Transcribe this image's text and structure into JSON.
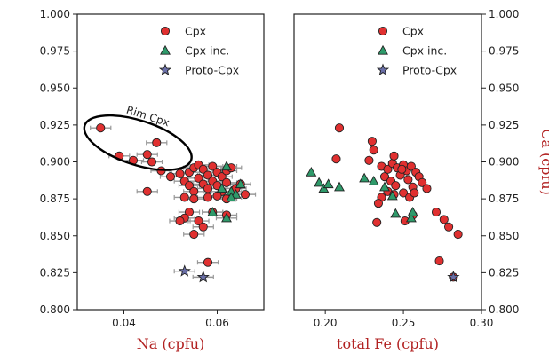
{
  "chart_data": [
    {
      "type": "scatter",
      "xlabel": "Na (cpfu)",
      "ylabel": "",
      "xlim": [
        0.03,
        0.07
      ],
      "ylim": [
        0.8,
        1.0
      ],
      "xticks": [
        "0.04",
        "0.06"
      ],
      "yticks": [
        "0.800",
        "0.825",
        "0.850",
        "0.875",
        "0.900",
        "0.925",
        "0.950",
        "0.975",
        "1.000"
      ],
      "y_axis_side": "left",
      "legend": "top-right",
      "annotation": {
        "text": "Rim Cpx",
        "x": 0.043,
        "y": 0.913
      },
      "series": [
        {
          "name": "Cpx",
          "marker": "circle",
          "color": "#e03030",
          "points": [
            [
              0.035,
              0.923
            ],
            [
              0.039,
              0.904
            ],
            [
              0.042,
              0.901
            ],
            [
              0.045,
              0.905
            ],
            [
              0.046,
              0.9
            ],
            [
              0.047,
              0.913
            ],
            [
              0.048,
              0.894
            ],
            [
              0.045,
              0.88
            ],
            [
              0.05,
              0.89
            ],
            [
              0.052,
              0.892
            ],
            [
              0.054,
              0.893
            ],
            [
              0.055,
              0.896
            ],
            [
              0.056,
              0.898
            ],
            [
              0.057,
              0.895
            ],
            [
              0.058,
              0.891
            ],
            [
              0.059,
              0.897
            ],
            [
              0.06,
              0.893
            ],
            [
              0.061,
              0.89
            ],
            [
              0.062,
              0.894
            ],
            [
              0.063,
              0.896
            ],
            [
              0.053,
              0.887
            ],
            [
              0.054,
              0.884
            ],
            [
              0.055,
              0.88
            ],
            [
              0.056,
              0.889
            ],
            [
              0.057,
              0.885
            ],
            [
              0.058,
              0.882
            ],
            [
              0.059,
              0.887
            ],
            [
              0.06,
              0.884
            ],
            [
              0.061,
              0.88
            ],
            [
              0.062,
              0.886
            ],
            [
              0.064,
              0.882
            ],
            [
              0.065,
              0.885
            ],
            [
              0.066,
              0.878
            ],
            [
              0.053,
              0.876
            ],
            [
              0.055,
              0.875
            ],
            [
              0.058,
              0.876
            ],
            [
              0.06,
              0.877
            ],
            [
              0.062,
              0.875
            ],
            [
              0.054,
              0.866
            ],
            [
              0.056,
              0.86
            ],
            [
              0.057,
              0.856
            ],
            [
              0.055,
              0.851
            ],
            [
              0.053,
              0.862
            ],
            [
              0.052,
              0.86
            ],
            [
              0.059,
              0.866
            ],
            [
              0.062,
              0.864
            ],
            [
              0.058,
              0.832
            ]
          ]
        },
        {
          "name": "Cpx inc.",
          "marker": "triangle",
          "color": "#2e9a6a",
          "points": [
            [
              0.062,
              0.862
            ],
            [
              0.059,
              0.866
            ],
            [
              0.063,
              0.88
            ],
            [
              0.065,
              0.885
            ],
            [
              0.062,
              0.897
            ],
            [
              0.064,
              0.878
            ],
            [
              0.061,
              0.882
            ],
            [
              0.063,
              0.876
            ]
          ]
        },
        {
          "name": "Proto-Cpx",
          "marker": "star",
          "color": "#6a6fa8",
          "points": [
            [
              0.053,
              0.826
            ],
            [
              0.057,
              0.822
            ]
          ]
        }
      ]
    },
    {
      "type": "scatter",
      "xlabel": "total Fe (cpfu)",
      "ylabel": "Ca (cpfu)",
      "xlim": [
        0.18,
        0.3
      ],
      "ylim": [
        0.8,
        1.0
      ],
      "xticks": [
        "0.20",
        "0.25",
        "0.30"
      ],
      "yticks": [
        "0.800",
        "0.825",
        "0.850",
        "0.875",
        "0.900",
        "0.925",
        "0.950",
        "0.975",
        "1.000"
      ],
      "y_axis_side": "right",
      "legend": "top-right",
      "series": [
        {
          "name": "Cpx",
          "marker": "circle",
          "color": "#e03030",
          "points": [
            [
              0.209,
              0.923
            ],
            [
              0.207,
              0.902
            ],
            [
              0.23,
              0.914
            ],
            [
              0.231,
              0.908
            ],
            [
              0.228,
              0.901
            ],
            [
              0.236,
              0.897
            ],
            [
              0.24,
              0.895
            ],
            [
              0.243,
              0.899
            ],
            [
              0.246,
              0.896
            ],
            [
              0.25,
              0.898
            ],
            [
              0.252,
              0.894
            ],
            [
              0.255,
              0.897
            ],
            [
              0.258,
              0.893
            ],
            [
              0.26,
              0.89
            ],
            [
              0.262,
              0.886
            ],
            [
              0.265,
              0.882
            ],
            [
              0.238,
              0.89
            ],
            [
              0.242,
              0.887
            ],
            [
              0.245,
              0.884
            ],
            [
              0.248,
              0.891
            ],
            [
              0.253,
              0.888
            ],
            [
              0.256,
              0.883
            ],
            [
              0.24,
              0.88
            ],
            [
              0.244,
              0.878
            ],
            [
              0.25,
              0.879
            ],
            [
              0.254,
              0.876
            ],
            [
              0.257,
              0.879
            ],
            [
              0.236,
              0.876
            ],
            [
              0.234,
              0.872
            ],
            [
              0.249,
              0.895
            ],
            [
              0.244,
              0.904
            ],
            [
              0.233,
              0.859
            ],
            [
              0.251,
              0.86
            ],
            [
              0.256,
              0.864
            ],
            [
              0.271,
              0.866
            ],
            [
              0.276,
              0.861
            ],
            [
              0.279,
              0.856
            ],
            [
              0.285,
              0.851
            ],
            [
              0.273,
              0.833
            ],
            [
              0.282,
              0.822
            ]
          ]
        },
        {
          "name": "Cpx inc.",
          "marker": "triangle",
          "color": "#2e9a6a",
          "points": [
            [
              0.191,
              0.893
            ],
            [
              0.196,
              0.886
            ],
            [
              0.199,
              0.882
            ],
            [
              0.202,
              0.885
            ],
            [
              0.209,
              0.883
            ],
            [
              0.225,
              0.889
            ],
            [
              0.238,
              0.883
            ],
            [
              0.243,
              0.877
            ],
            [
              0.245,
              0.865
            ],
            [
              0.255,
              0.862
            ],
            [
              0.256,
              0.866
            ],
            [
              0.231,
              0.887
            ]
          ]
        },
        {
          "name": "Proto-Cpx",
          "marker": "star",
          "color": "#6a6fa8",
          "points": [
            [
              0.282,
              0.822
            ]
          ]
        }
      ]
    }
  ]
}
